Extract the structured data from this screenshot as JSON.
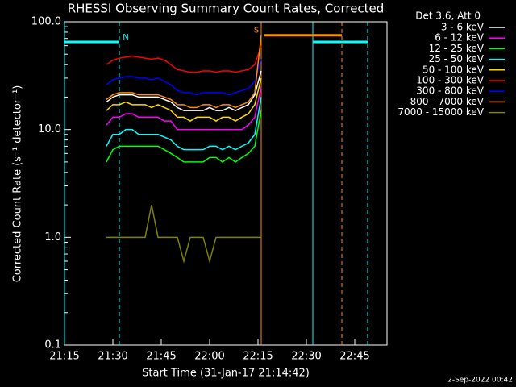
{
  "chart_data": {
    "type": "line",
    "title": "RHESSI Observing Summary Count Rates, Corrected",
    "subtitle": "Det 3,6, Att 0",
    "x_label": "Start Time (31-Jan-17 21:14:42)",
    "y_label": "Corrected Count Rate (s⁻¹ detector⁻¹)",
    "footer": "2-Sep-2022 00:42",
    "log_y": true,
    "grid": false,
    "legend": "right",
    "x": [
      "21:28",
      "21:30",
      "21:32",
      "21:34",
      "21:36",
      "21:38",
      "21:40",
      "21:42",
      "21:44",
      "21:46",
      "21:48",
      "21:50",
      "21:52",
      "21:54",
      "21:56",
      "21:58",
      "22:00",
      "22:02",
      "22:04",
      "22:06",
      "22:08",
      "22:10",
      "22:12",
      "22:14",
      "22:16"
    ],
    "xlim": [
      "21:15",
      "22:55"
    ],
    "xticks": [
      "21:15",
      "21:30",
      "21:45",
      "22:00",
      "22:15",
      "22:30",
      "22:45"
    ],
    "ylim": [
      0.1,
      100
    ],
    "yticks": [
      {
        "value": 0.1,
        "label": "0.1"
      },
      {
        "value": 1,
        "label": "1.0"
      },
      {
        "value": 10,
        "label": "10.0"
      },
      {
        "value": 100,
        "label": "100.0"
      }
    ],
    "series": [
      {
        "name": "3 - 6 keV",
        "color": "#ffffff",
        "values": [
          18,
          20,
          21,
          21,
          21,
          20,
          20,
          20,
          20,
          19,
          18,
          16,
          15,
          15,
          15,
          15,
          16,
          15,
          15,
          16,
          15,
          16,
          17,
          21,
          35
        ]
      },
      {
        "name": "6 - 12 keV",
        "color": "#ff00ff",
        "values": [
          11,
          13,
          13,
          14,
          14,
          13,
          13,
          13,
          13,
          12,
          12,
          10,
          10,
          10,
          10,
          10,
          10,
          10,
          10,
          10,
          10,
          10,
          11,
          13,
          25
        ]
      },
      {
        "name": "12 - 25 keV",
        "color": "#00ff00",
        "values": [
          5,
          6.5,
          7,
          7,
          7,
          7,
          7,
          7,
          7,
          6.5,
          6,
          5.5,
          5,
          5,
          5,
          5,
          5.5,
          5.5,
          5,
          5.5,
          5,
          5.5,
          6,
          7,
          15
        ]
      },
      {
        "name": "25 - 50 keV",
        "color": "#00ffff",
        "values": [
          7,
          9,
          9,
          10,
          10,
          9,
          9,
          9,
          9,
          8.5,
          8,
          7,
          6.5,
          6.5,
          6.5,
          6.5,
          7,
          7,
          6.5,
          7,
          6.5,
          7,
          7.5,
          9,
          20
        ]
      },
      {
        "name": "50 - 100 keV",
        "color": "#ffd700",
        "values": [
          15,
          17,
          17,
          18,
          17,
          17,
          17,
          16,
          17,
          16,
          15,
          13,
          13,
          12,
          13,
          13,
          13,
          12,
          13,
          13,
          12,
          13,
          14,
          17,
          30
        ]
      },
      {
        "name": "100 - 300 keV",
        "color": "#ff0000",
        "values": [
          40,
          44,
          46,
          47,
          48,
          47,
          46,
          45,
          46,
          44,
          40,
          36,
          35,
          34,
          34,
          35,
          35,
          34,
          35,
          35,
          34,
          35,
          36,
          40,
          60
        ]
      },
      {
        "name": "300 - 800 keV",
        "color": "#0000ff",
        "values": [
          26,
          29,
          30,
          31,
          31,
          30,
          30,
          29,
          30,
          28,
          26,
          23,
          22,
          22,
          21,
          22,
          22,
          22,
          22,
          21,
          22,
          23,
          24,
          28,
          45
        ]
      },
      {
        "name": "800 - 7000 keV",
        "color": "#ff8c00",
        "values": [
          19,
          21,
          22,
          22,
          22,
          21,
          21,
          21,
          21,
          20,
          19,
          17,
          17,
          16,
          16,
          17,
          17,
          16,
          17,
          17,
          16,
          17,
          18,
          22,
          75
        ]
      },
      {
        "name": "7000 - 15000 keV",
        "color": "#808000",
        "values": [
          1,
          1,
          1,
          1,
          1,
          1,
          1,
          2,
          1,
          1,
          1,
          1,
          0.6,
          1,
          1,
          1,
          0.6,
          1,
          1,
          1,
          1,
          1,
          1,
          1,
          1
        ]
      }
    ],
    "vlines": [
      {
        "x": "21:15",
        "color": "#00ffff",
        "dashed": false
      },
      {
        "x": "21:32",
        "color": "#00ffff",
        "dashed": true
      },
      {
        "x": "22:16",
        "color": "#ff8c00",
        "dashed": false
      },
      {
        "x": "22:32",
        "color": "#00ffff",
        "dashed": false
      },
      {
        "x": "22:41",
        "color": "#ff8c00",
        "dashed": true
      },
      {
        "x": "22:49",
        "color": "#00ffff",
        "dashed": true
      }
    ],
    "hbars": [
      {
        "x": [
          "21:15",
          "21:32"
        ],
        "y": 65,
        "color": "#00ffff",
        "label": "N"
      },
      {
        "x": [
          "22:32",
          "22:49"
        ],
        "y": 65,
        "color": "#00ffff"
      },
      {
        "x": [
          "22:17",
          "22:41"
        ],
        "y": 75,
        "color": "#ff8c00",
        "label": "S"
      }
    ]
  }
}
